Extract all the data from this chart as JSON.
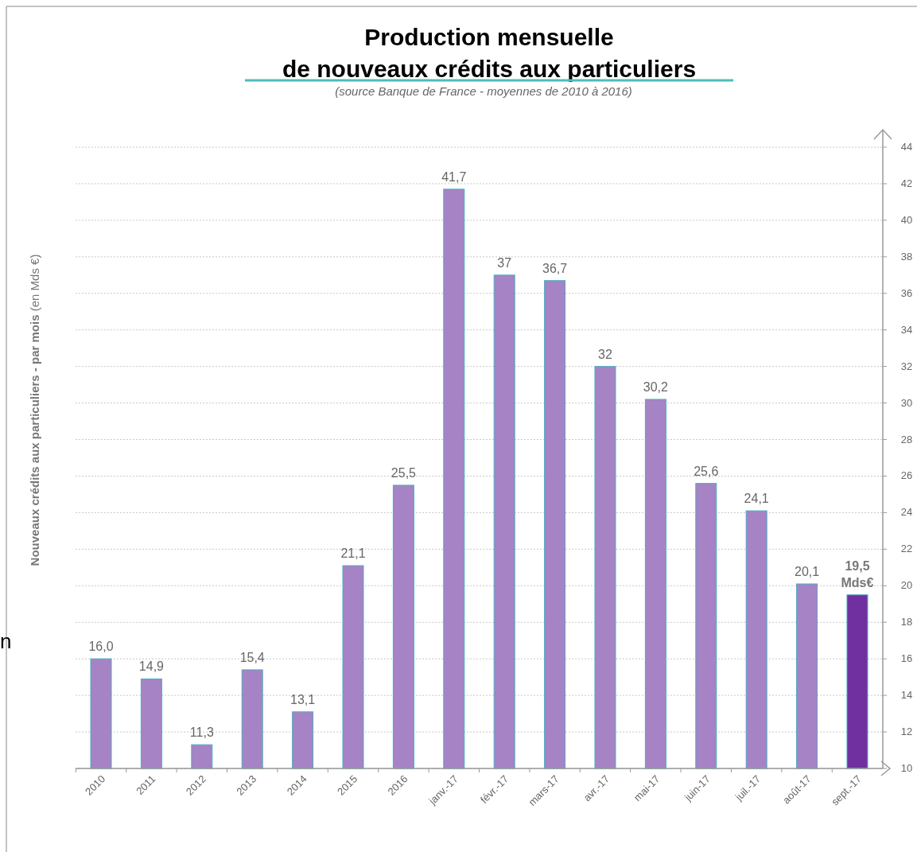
{
  "chart_data": {
    "type": "bar",
    "title": "Production mensuelle\nde nouveaux crédits aux particuliers",
    "subtitle": "(source Banque de France - moyennes de 2010 à 2016)",
    "ylabel": "Nouveaux crédits aux particuliers - par mois (en Mds €)",
    "annotations": [
      "n"
    ],
    "categories": [
      "2010",
      "2011",
      "2012",
      "2013",
      "2014",
      "2015",
      "2016",
      "janv.-17",
      "févr.-17",
      "mars-17",
      "avr.-17",
      "mai-17",
      "juin-17",
      "juil.-17",
      "août-17",
      "sept.-17"
    ],
    "values": [
      16.0,
      14.9,
      11.3,
      15.4,
      13.1,
      21.1,
      25.5,
      41.7,
      37,
      36.7,
      32,
      30.2,
      25.6,
      24.1,
      20.1,
      19.5
    ],
    "value_labels": [
      "16,0",
      "14,9",
      "11,3",
      "15,4",
      "13,1",
      "21,1",
      "25,5",
      "41,7",
      "37",
      "36,7",
      "32",
      "30,2",
      "25,6",
      "24,1",
      "20,1",
      "19,5 Mds€"
    ],
    "colors": [
      "#a683c4",
      "#a683c4",
      "#a683c4",
      "#a683c4",
      "#a683c4",
      "#a683c4",
      "#a683c4",
      "#a683c4",
      "#a683c4",
      "#a683c4",
      "#a683c4",
      "#a683c4",
      "#a683c4",
      "#a683c4",
      "#a683c4",
      "#7030a0"
    ],
    "ylim": [
      10,
      44
    ],
    "yticks": [
      10,
      12,
      14,
      16,
      18,
      20,
      22,
      24,
      26,
      28,
      30,
      32,
      34,
      36,
      38,
      40,
      42,
      44
    ],
    "grid": "y"
  }
}
